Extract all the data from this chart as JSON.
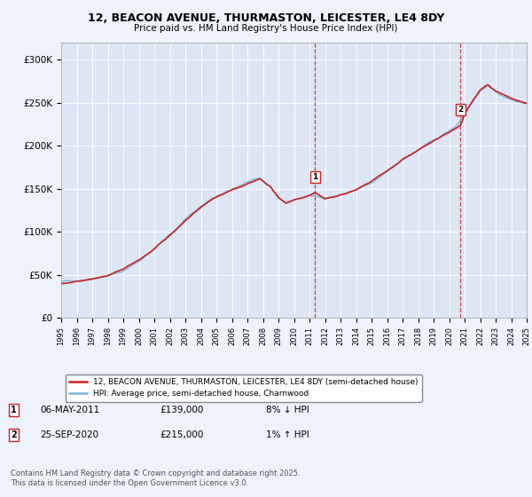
{
  "title_line1": "12, BEACON AVENUE, THURMASTON, LEICESTER, LE4 8DY",
  "title_line2": "Price paid vs. HM Land Registry's House Price Index (HPI)",
  "background_color": "#eef2fa",
  "plot_bg_color": "#dce6f5",
  "year_start": 1995,
  "year_end": 2025,
  "ylim_min": 0,
  "ylim_max": 320000,
  "yticks": [
    0,
    50000,
    100000,
    150000,
    200000,
    250000,
    300000
  ],
  "ytick_labels": [
    "£0",
    "£50K",
    "£100K",
    "£150K",
    "£200K",
    "£250K",
    "£300K"
  ],
  "hpi_color": "#7ab4d8",
  "price_color": "#cc2222",
  "marker1_year": 2011.35,
  "marker1_value": 139000,
  "marker1_label": "1",
  "marker1_date": "06-MAY-2011",
  "marker1_price": "£139,000",
  "marker1_note": "8% ↓ HPI",
  "marker2_year": 2020.73,
  "marker2_value": 215000,
  "marker2_label": "2",
  "marker2_date": "25-SEP-2020",
  "marker2_price": "£215,000",
  "marker2_note": "1% ↑ HPI",
  "legend_label1": "12, BEACON AVENUE, THURMASTON, LEICESTER, LE4 8DY (semi-detached house)",
  "legend_label2": "HPI: Average price, semi-detached house, Charnwood",
  "footer_text": "Contains HM Land Registry data © Crown copyright and database right 2025.\nThis data is licensed under the Open Government Licence v3.0.",
  "grid_color": "#ffffff",
  "vline_color": "#cc2222"
}
